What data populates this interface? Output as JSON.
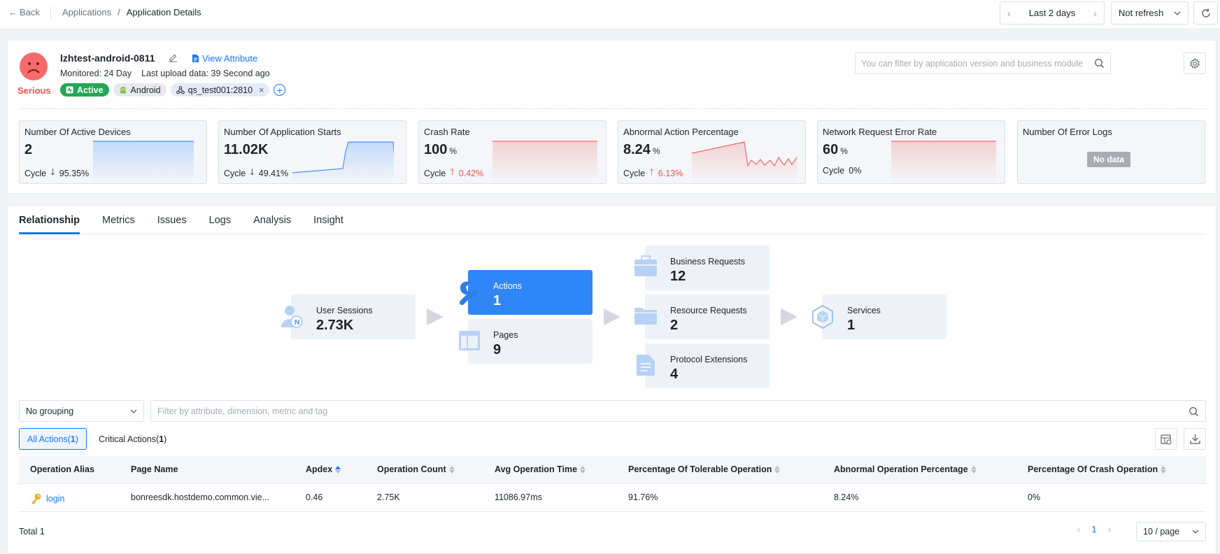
{
  "topbar": {
    "back_label": "Back",
    "breadcrumb": [
      "Applications",
      "/",
      "Application Details"
    ],
    "time_range": "Last 2 days",
    "refresh_mode": "Not refresh"
  },
  "app": {
    "status_label": "Serious",
    "name": "lzhtest-android-0811",
    "view_attribute": "View Attribute",
    "monitored": "Monitored: 24 Day",
    "last_upload": "Last upload data: 39 Second ago",
    "tags": [
      "Active",
      "Android",
      "qs_test001:2810"
    ],
    "filter_placeholder": "You can filter by application version and business module"
  },
  "kpis": [
    {
      "title": "Number Of Active Devices",
      "value": "2",
      "unit": "",
      "cycle_label": "Cycle",
      "cycle_dir": "down",
      "cycle_value": "95.35%",
      "trend": "flat-blue"
    },
    {
      "title": "Number Of Application Starts",
      "value": "11.02K",
      "unit": "",
      "cycle_label": "Cycle",
      "cycle_dir": "down",
      "cycle_value": "49.41%",
      "trend": "rise-blue"
    },
    {
      "title": "Crash Rate",
      "value": "100",
      "unit": "%",
      "cycle_label": "Cycle",
      "cycle_dir": "up",
      "cycle_value": "0.42%",
      "trend": "flat-red"
    },
    {
      "title": "Abnormal Action Percentage",
      "value": "8.24",
      "unit": "%",
      "cycle_label": "Cycle",
      "cycle_dir": "up",
      "cycle_value": "6.13%",
      "trend": "jagged-red"
    },
    {
      "title": "Network Request Error Rate",
      "value": "60",
      "unit": "%",
      "cycle_label": "Cycle",
      "cycle_dir": "none",
      "cycle_value": "0%",
      "trend": "flat-red"
    },
    {
      "title": "Number Of Error Logs",
      "value": "",
      "unit": "",
      "cycle_label": "",
      "cycle_dir": "none",
      "cycle_value": "",
      "trend": "none",
      "nodata": "No data"
    }
  ],
  "tabs": [
    "Relationship",
    "Metrics",
    "Issues",
    "Logs",
    "Analysis",
    "Insight"
  ],
  "active_tab": "Relationship",
  "relationship": {
    "user_sessions": {
      "label": "User Sessions",
      "value": "2.73K"
    },
    "actions": {
      "label": "Actions",
      "value": "1"
    },
    "pages": {
      "label": "Pages",
      "value": "9"
    },
    "business_requests": {
      "label": "Business Requests",
      "value": "12"
    },
    "resource_requests": {
      "label": "Resource Requests",
      "value": "2"
    },
    "protocol_extensions": {
      "label": "Protocol Extensions",
      "value": "4"
    },
    "services": {
      "label": "Services",
      "value": "1"
    }
  },
  "filters": {
    "grouping": "No grouping",
    "attr_placeholder": "Filter by attribute, dimension, metric and tag"
  },
  "segments": {
    "all_prefix": "All Actions(",
    "all_count": "1",
    "suffix": ")",
    "critical_prefix": "Critical Actions(",
    "critical_count": "1"
  },
  "table": {
    "columns": [
      "Operation Alias",
      "Page Name",
      "Apdex",
      "Operation Count",
      "Avg Operation Time",
      "Percentage Of Tolerable Operation",
      "Abnormal Operation Percentage",
      "Percentage Of Crash Operation"
    ],
    "rows": [
      [
        "login",
        "bonreesdk.hostdemo.common.vie...",
        "0.46",
        "2.75K",
        "11086.97ms",
        "91.76%",
        "8.24%",
        "0%"
      ]
    ]
  },
  "pagination": {
    "total": "Total 1",
    "page": "1",
    "page_size": "10 / page"
  },
  "colors": {
    "accent": "#1677ff",
    "danger": "#f0524f",
    "active_tag": "#21a853",
    "selected_node": "#2f86f6"
  }
}
